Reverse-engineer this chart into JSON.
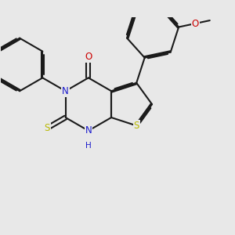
{
  "bg_color": "#e8e8e8",
  "bond_color": "#1a1a1a",
  "bond_width": 1.5,
  "dbo": 0.022,
  "atom_colors": {
    "N": "#1a1acc",
    "O": "#cc0000",
    "S": "#b8b800",
    "H": "#1a1acc"
  },
  "fs": 8.5,
  "fs_small": 7.5
}
